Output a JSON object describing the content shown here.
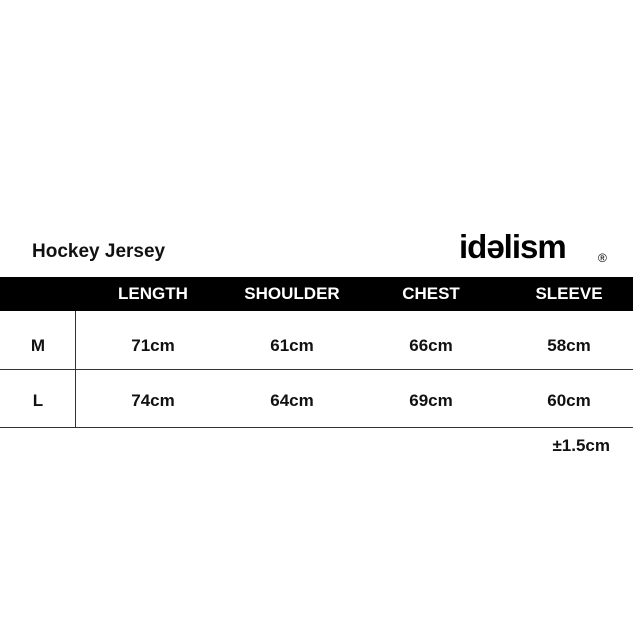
{
  "header": {
    "title": "Hockey Jersey",
    "brand": "idəlism",
    "brand_mark": "®"
  },
  "table": {
    "columns": [
      "LENGTH",
      "SHOULDER",
      "CHEST",
      "SLEEVE"
    ],
    "rows": [
      [
        "M",
        "71cm",
        "61cm",
        "66cm",
        "58cm"
      ],
      [
        "L",
        "74cm",
        "64cm",
        "69cm",
        "60cm"
      ]
    ]
  },
  "note": "±1.5cm"
}
